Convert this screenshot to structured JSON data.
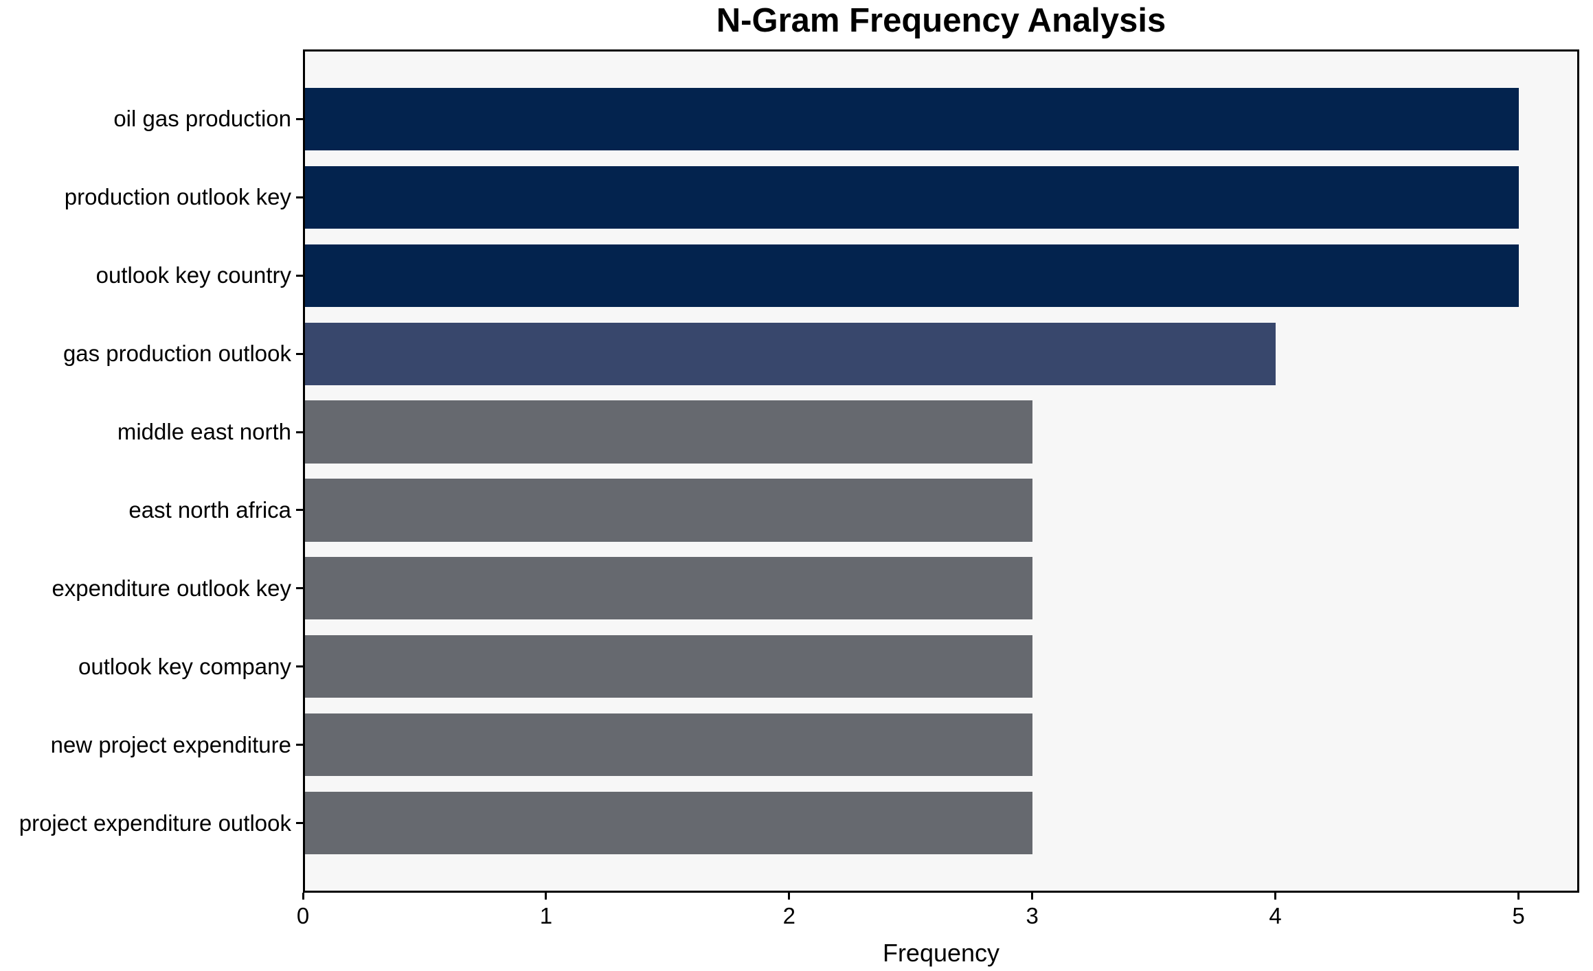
{
  "chart_data": {
    "type": "bar",
    "orientation": "horizontal",
    "title": "N-Gram Frequency Analysis",
    "xlabel": "Frequency",
    "ylabel": "",
    "categories": [
      "oil gas production",
      "production outlook key",
      "outlook key country",
      "gas production outlook",
      "middle east north",
      "east north africa",
      "expenditure outlook key",
      "outlook key company",
      "new project expenditure",
      "project expenditure outlook"
    ],
    "values": [
      5,
      5,
      5,
      4,
      3,
      3,
      3,
      3,
      3,
      3
    ],
    "bar_colors": [
      "#03234e",
      "#03234e",
      "#03234e",
      "#38476c",
      "#66696f",
      "#66696f",
      "#66696f",
      "#66696f",
      "#66696f",
      "#66696f"
    ],
    "x_ticks": [
      "0",
      "1",
      "2",
      "3",
      "4",
      "5"
    ],
    "x_tick_values": [
      0,
      1,
      2,
      3,
      4,
      5
    ],
    "xlim": [
      0,
      5.25
    ],
    "grid": false,
    "legend": null,
    "data_labels": false,
    "colors": {
      "plot_background": "#f7f7f7",
      "figure_background": "#ffffff",
      "axis": "#000000",
      "text": "#000000"
    }
  }
}
